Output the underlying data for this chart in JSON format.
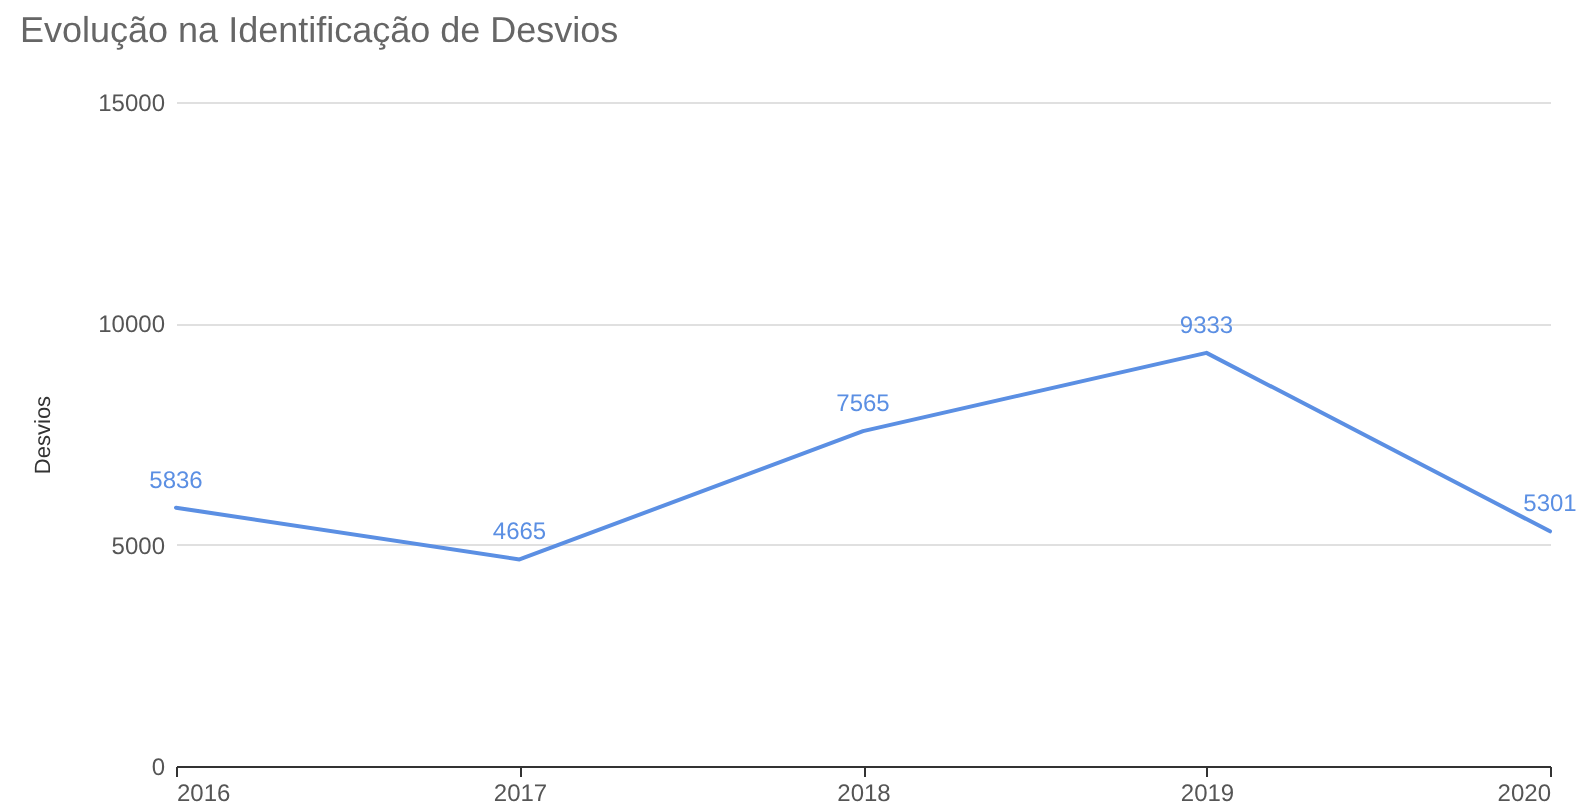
{
  "chart_data": {
    "type": "line",
    "title": "Evolução na Identificação de Desvios",
    "ylabel": "Desvios",
    "categories": [
      "2016",
      "2017",
      "2018",
      "2019",
      "2020"
    ],
    "series": [
      {
        "color": "#5b8fe3",
        "values": [
          5836,
          4665,
          7565,
          9333,
          5301
        ]
      }
    ],
    "ylim": [
      0,
      15000
    ],
    "yticks": [
      0,
      5000,
      10000,
      15000
    ],
    "grid": "y",
    "data_labels": true,
    "marker": "none",
    "line_style": "solid"
  }
}
